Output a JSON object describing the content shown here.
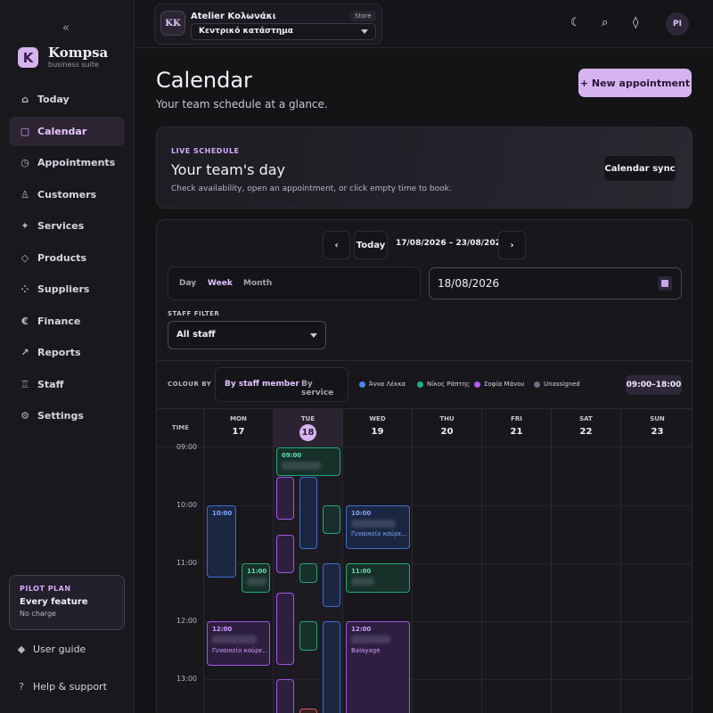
{
  "sidebar": {
    "collapse_glyph": "«",
    "logo_letter": "K",
    "brand": "Kompsa",
    "brand_sub": "business suite",
    "items": [
      {
        "label": "Today",
        "icon": "home-icon",
        "glyph": "⌂",
        "active": false
      },
      {
        "label": "Calendar",
        "icon": "calendar-icon",
        "glyph": "▢",
        "active": true
      },
      {
        "label": "Appointments",
        "icon": "clock-icon",
        "glyph": "◷",
        "active": false
      },
      {
        "label": "Customers",
        "icon": "person-icon",
        "glyph": "♙",
        "active": false
      },
      {
        "label": "Services",
        "icon": "sparkle-icon",
        "glyph": "✦",
        "active": false
      },
      {
        "label": "Products",
        "icon": "box-icon",
        "glyph": "◇",
        "active": false
      },
      {
        "label": "Suppliers",
        "icon": "people-icon",
        "glyph": "⁘",
        "active": false
      },
      {
        "label": "Finance",
        "icon": "euro-icon",
        "glyph": "€",
        "active": false
      },
      {
        "label": "Reports",
        "icon": "trend-icon",
        "glyph": "↗",
        "active": false
      },
      {
        "label": "Staff",
        "icon": "badge-icon",
        "glyph": "♖",
        "active": false
      },
      {
        "label": "Settings",
        "icon": "gear-icon",
        "glyph": "⚙",
        "active": false
      }
    ],
    "pilot": {
      "title": "PILOT PLAN",
      "feature": "Every feature",
      "charge": "No charge"
    },
    "user_guide": "User guide",
    "help": "Help & support"
  },
  "topbar": {
    "store_initials": "KK",
    "store_name": "Atelier Κολωνάκι",
    "store_badge": "Store",
    "store_select": "Κεντρικό κατάστημα",
    "avatar": "PI"
  },
  "page": {
    "title": "Calendar",
    "subtitle": "Your team schedule at a glance.",
    "new_button": "+ New appointment"
  },
  "hero": {
    "kicker": "LIVE SCHEDULE",
    "title": "Your team's day",
    "subtitle": "Check availability, open an appointment, or click empty time to book.",
    "sync_button": "Calendar sync"
  },
  "calendar": {
    "prev": "‹",
    "today_button": "Today",
    "next": "›",
    "range": "17/08/2026 – 23/08/2026",
    "views": [
      "Day",
      "Week",
      "Month"
    ],
    "active_view": "Week",
    "date_value": "18/08/2026",
    "staff_filter_label": "STAFF FILTER",
    "staff_filter_value": "All staff",
    "colour_by_label": "COLOUR BY",
    "colour_by_options": [
      "By staff member",
      "By service"
    ],
    "legend": [
      {
        "name": "Άννα Λέκκα",
        "color": "#4a86f0"
      },
      {
        "name": "Νίκος Ράπτης",
        "color": "#22b07d"
      },
      {
        "name": "Σοφία Μάνου",
        "color": "#b15cf0"
      },
      {
        "name": "Unassigned",
        "color": "#6b6f86"
      }
    ],
    "hours": "09:00–18:00",
    "time_header": "TIME",
    "times": [
      "09:00",
      "10:00",
      "11:00",
      "12:00",
      "13:00"
    ],
    "days": [
      {
        "name": "MON",
        "num": "17"
      },
      {
        "name": "TUE",
        "num": "18",
        "today": true
      },
      {
        "name": "WED",
        "num": "19"
      },
      {
        "name": "THU",
        "num": "20"
      },
      {
        "name": "FRI",
        "num": "21"
      },
      {
        "name": "SAT",
        "num": "22"
      },
      {
        "name": "SUN",
        "num": "23"
      }
    ],
    "event_labels": {
      "e1": "09:00",
      "e2": "10:00",
      "e3": "11:00",
      "e4": "12:00",
      "e4_sub": "Γυναικείο κούρε...",
      "e5": "10:00",
      "e5_sub": "Γυναικείο κούρε...",
      "e6": "11:00",
      "e7": "12:00",
      "e7_sub": "Balayage"
    }
  }
}
